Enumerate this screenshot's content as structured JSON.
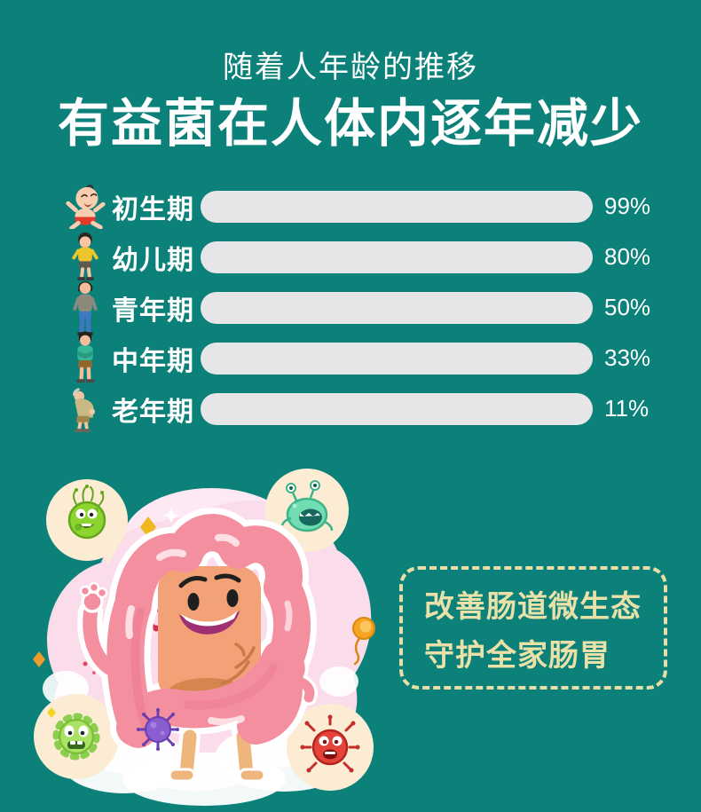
{
  "header": {
    "subtitle": "随着人年龄的推移",
    "title": "有益菌在人体内逐年减少"
  },
  "chart_data": {
    "type": "bar",
    "orientation": "horizontal",
    "title": "有益菌在人体内逐年减少",
    "categories": [
      "初生期",
      "幼儿期",
      "青年期",
      "中年期",
      "老年期"
    ],
    "values": [
      99,
      80,
      50,
      33,
      11
    ],
    "value_labels": [
      "99%",
      "80%",
      "50%",
      "33%",
      "11%"
    ],
    "unit": "%",
    "xlim": [
      0,
      100
    ],
    "icons": [
      "baby-icon",
      "toddler-icon",
      "young-adult-icon",
      "middle-aged-icon",
      "elderly-icon"
    ],
    "track_color": "#e6e5e8",
    "fill_gradient_top": "#bee32b",
    "fill_gradient_bottom": "#3d87f6",
    "legend": null,
    "grid": false
  },
  "callout": {
    "line1": "改善肠道微生态",
    "line2": "守护全家肠胃"
  },
  "colors": {
    "background": "#0b817a",
    "heading_text": "#ffffff",
    "callout_text": "#eae1a9",
    "callout_border": "#e8dfa8"
  },
  "illustration": {
    "icons": [
      "intestine-character",
      "green-microbe-icon",
      "teal-microbe-icon",
      "fuzzy-green-microbe-icon",
      "red-microbe-icon",
      "red-virus-icon",
      "purple-virus-icon",
      "orange-bacterium-icon",
      "sparkle-icons"
    ]
  }
}
